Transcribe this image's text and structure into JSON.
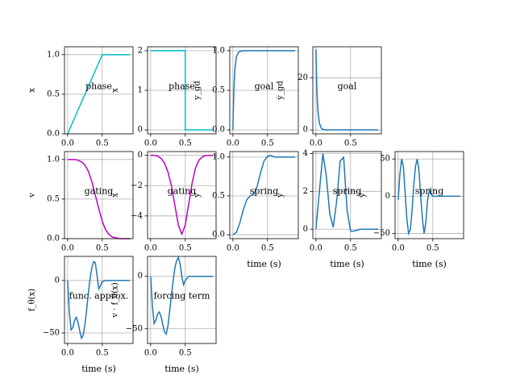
{
  "chart_data": [
    {
      "type": "line",
      "annotation": "phase",
      "ylabel": "x",
      "x": [
        0,
        0.5,
        0.9
      ],
      "values": [
        0,
        1,
        1
      ],
      "color": "#00bfbf",
      "xlim": [
        -0.045,
        0.945
      ],
      "ylim": [
        0,
        1.1
      ],
      "xticks": [
        {
          "value": 0,
          "label": "0.0"
        },
        0.5
      ],
      "yticks": [
        {
          "value": 0,
          "label": "0.0"
        },
        0.5,
        {
          "value": 1,
          "label": "1.0"
        }
      ],
      "grid": true
    },
    {
      "type": "line",
      "annotation": "phase",
      "ylabel": "x",
      "x": [
        0,
        0.5,
        0.5,
        0.9
      ],
      "values": [
        2,
        2,
        0,
        0
      ],
      "color": "#00bfbf",
      "xlim": [
        -0.045,
        0.945
      ],
      "ylim": [
        -0.1,
        2.1
      ],
      "xticks": [
        {
          "value": 0,
          "label": "0.0"
        },
        0.5
      ],
      "yticks": [
        0,
        1,
        2
      ],
      "grid": true
    },
    {
      "type": "line",
      "annotation": "goal",
      "ylabel": "y_gd",
      "x": [
        0,
        0.01,
        0.02,
        0.03,
        0.05,
        0.08,
        0.1,
        0.15,
        0.2,
        0.9
      ],
      "values": [
        0,
        0.39,
        0.63,
        0.78,
        0.92,
        0.98,
        0.99,
        1,
        1,
        1
      ],
      "color": "#1f77b4",
      "xlim": [
        -0.045,
        0.945
      ],
      "ylim": [
        -0.05,
        1.05
      ],
      "xticks": [
        {
          "value": 0,
          "label": "0.0"
        },
        0.5
      ],
      "yticks": [
        {
          "value": 0,
          "label": "0.0"
        },
        0.5,
        {
          "value": 1,
          "label": "1.0"
        }
      ],
      "grid": true
    },
    {
      "type": "line",
      "annotation": "goal",
      "ylabel": "ẏ_gd",
      "x": [
        0,
        0.01,
        0.02,
        0.03,
        0.05,
        0.08,
        0.1,
        0.15,
        0.2,
        0.9
      ],
      "values": [
        31,
        18.8,
        11.4,
        6.9,
        2.5,
        0.6,
        0.2,
        0,
        0,
        0
      ],
      "color": "#1f77b4",
      "xlim": [
        -0.045,
        0.945
      ],
      "ylim": [
        -1.5,
        32
      ],
      "xticks": [
        {
          "value": 0,
          "label": "0.0"
        },
        0.5
      ],
      "yticks": [
        0,
        20
      ],
      "grid": true
    },
    {
      "type": "line",
      "annotation": "gating",
      "ylabel": "v",
      "x": [
        0,
        0.05,
        0.1,
        0.15,
        0.2,
        0.25,
        0.3,
        0.35,
        0.4,
        0.45,
        0.5,
        0.55,
        0.6,
        0.65,
        0.7,
        0.75,
        0.8,
        0.85,
        0.9
      ],
      "values": [
        1,
        1,
        1,
        0.99,
        0.97,
        0.93,
        0.85,
        0.72,
        0.55,
        0.38,
        0.22,
        0.11,
        0.05,
        0.02,
        0.01,
        0,
        0,
        0,
        0
      ],
      "color": "#bf00bf",
      "xlim": [
        -0.045,
        0.945
      ],
      "ylim": [
        0,
        1.1
      ],
      "xticks": [
        {
          "value": 0,
          "label": "0.0"
        },
        0.5
      ],
      "yticks": [
        {
          "value": 0,
          "label": "0.0"
        },
        0.5,
        {
          "value": 1,
          "label": "1.0"
        }
      ],
      "grid": true
    },
    {
      "type": "line",
      "annotation": "gating",
      "ylabel": "ẋ",
      "x": [
        0,
        0.05,
        0.1,
        0.15,
        0.2,
        0.25,
        0.3,
        0.35,
        0.4,
        0.45,
        0.5,
        0.55,
        0.6,
        0.65,
        0.7,
        0.75,
        0.8,
        0.85,
        0.9
      ],
      "values": [
        0,
        0,
        -0.05,
        -0.2,
        -0.5,
        -1.1,
        -2,
        -3.3,
        -4.6,
        -5.2,
        -4.6,
        -3.2,
        -1.8,
        -0.8,
        -0.3,
        -0.1,
        0,
        0,
        0
      ],
      "color": "#bf00bf",
      "xlim": [
        -0.045,
        0.945
      ],
      "ylim": [
        -5.5,
        0.25
      ],
      "xticks": [
        {
          "value": 0,
          "label": "0.0"
        },
        0.5
      ],
      "yticks": [
        0,
        {
          "value": -2,
          "label": "−2"
        },
        {
          "value": -4,
          "label": "−4"
        }
      ],
      "grid": true
    },
    {
      "type": "line",
      "annotation": "spring",
      "ylabel": "y",
      "xlabel": "time (s)",
      "x": [
        0,
        0.05,
        0.1,
        0.15,
        0.2,
        0.25,
        0.3,
        0.35,
        0.4,
        0.45,
        0.5,
        0.55,
        0.6,
        0.65,
        0.7,
        0.75,
        0.8,
        0.85,
        0.9
      ],
      "values": [
        0,
        0.03,
        0.15,
        0.32,
        0.45,
        0.5,
        0.52,
        0.62,
        0.8,
        0.95,
        1.01,
        1.02,
        1,
        1,
        1,
        1,
        1,
        1,
        1
      ],
      "color": "#1f77b4",
      "xlim": [
        -0.045,
        0.945
      ],
      "ylim": [
        -0.05,
        1.07
      ],
      "xticks": [
        {
          "value": 0,
          "label": "0.0"
        },
        0.5
      ],
      "yticks": [
        {
          "value": 0,
          "label": "0.0"
        },
        0.5,
        {
          "value": 1,
          "label": "1.0"
        }
      ],
      "grid": true
    },
    {
      "type": "line",
      "annotation": "spring",
      "ylabel": "ẏ",
      "xlabel": "time (s)",
      "x": [
        0,
        0.05,
        0.1,
        0.15,
        0.2,
        0.25,
        0.3,
        0.35,
        0.4,
        0.45,
        0.5,
        0.55,
        0.6,
        0.65,
        0.7,
        0.75,
        0.8,
        0.85,
        0.9
      ],
      "values": [
        0,
        2,
        4,
        2.8,
        0.8,
        0.1,
        1.5,
        3.6,
        3.8,
        1,
        -0.1,
        -0.1,
        -0.05,
        0,
        0,
        0,
        0,
        0,
        0
      ],
      "color": "#1f77b4",
      "xlim": [
        -0.045,
        0.945
      ],
      "ylim": [
        -0.5,
        4.1
      ],
      "xticks": [
        {
          "value": 0,
          "label": "0.0"
        },
        0.5
      ],
      "yticks": [
        0,
        2,
        4
      ],
      "grid": true
    },
    {
      "type": "line",
      "annotation": "spring",
      "ylabel": "ÿ",
      "xlabel": "time (s)",
      "x": [
        0,
        0.025,
        0.05,
        0.075,
        0.1,
        0.125,
        0.15,
        0.175,
        0.2,
        0.225,
        0.25,
        0.275,
        0.3,
        0.325,
        0.35,
        0.375,
        0.4,
        0.425,
        0.45,
        0.475,
        0.5,
        0.55,
        0.6,
        0.9
      ],
      "values": [
        -5,
        30,
        50,
        40,
        5,
        -30,
        -50,
        -45,
        -20,
        15,
        40,
        50,
        35,
        0,
        -30,
        -50,
        -35,
        -5,
        8,
        3,
        0,
        0,
        0,
        0
      ],
      "color": "#1f77b4",
      "xlim": [
        -0.045,
        0.945
      ],
      "ylim": [
        -57,
        60
      ],
      "xticks": [
        {
          "value": 0,
          "label": "0.0"
        },
        0.5
      ],
      "yticks": [
        {
          "value": -50,
          "label": "−50"
        },
        0,
        50
      ],
      "grid": true
    },
    {
      "type": "line",
      "annotation": "func. approx.",
      "ylabel": "f_θ(x)",
      "xlabel": "time (s)",
      "x": [
        0,
        0.025,
        0.05,
        0.075,
        0.1,
        0.125,
        0.15,
        0.175,
        0.2,
        0.225,
        0.25,
        0.275,
        0.3,
        0.325,
        0.35,
        0.375,
        0.4,
        0.425,
        0.45,
        0.475,
        0.5,
        0.55,
        0.6,
        0.9
      ],
      "values": [
        0,
        -30,
        -47,
        -45,
        -38,
        -35,
        -40,
        -48,
        -55,
        -52,
        -42,
        -28,
        -12,
        2,
        12,
        18,
        17,
        5,
        -8,
        -5,
        -1,
        0,
        0,
        0
      ],
      "color": "#1f77b4",
      "xlim": [
        -0.045,
        0.945
      ],
      "ylim": [
        -60,
        23
      ],
      "xticks": [
        {
          "value": 0,
          "label": "0.0"
        },
        0.5
      ],
      "yticks": [
        {
          "value": -50,
          "label": "−50"
        },
        0
      ],
      "grid": true
    },
    {
      "type": "line",
      "annotation": "forcing term",
      "ylabel": "v · f_θ(x)",
      "xlabel": "time (s)",
      "x": [
        0,
        0.025,
        0.05,
        0.075,
        0.1,
        0.125,
        0.15,
        0.175,
        0.2,
        0.225,
        0.25,
        0.275,
        0.3,
        0.325,
        0.35,
        0.375,
        0.4,
        0.425,
        0.45,
        0.475,
        0.5,
        0.55,
        0.6,
        0.9
      ],
      "values": [
        0,
        -28,
        -45,
        -42,
        -36,
        -34,
        -38,
        -46,
        -53,
        -55,
        -47,
        -33,
        -18,
        -4,
        8,
        15,
        18,
        12,
        0,
        -8,
        -4,
        0,
        0,
        0
      ],
      "color": "#1f77b4",
      "xlim": [
        -0.045,
        0.945
      ],
      "ylim": [
        -64,
        19
      ],
      "xticks": [
        {
          "value": 0,
          "label": "0.0"
        },
        0.5
      ],
      "yticks": [
        {
          "value": -50,
          "label": "−50"
        },
        0
      ],
      "grid": true
    }
  ]
}
